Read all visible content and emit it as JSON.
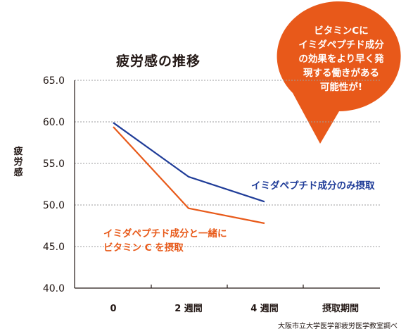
{
  "chart_data": {
    "type": "line",
    "title": "疲労感の推移",
    "xlabel": "",
    "ylabel": "疲労感",
    "categories": [
      "0",
      "2週間",
      "4週間"
    ],
    "x_tick_labels": [
      "0",
      "2 週間",
      "4 週間",
      "摂取期間"
    ],
    "y_tick_labels": [
      "40.0",
      "45.0",
      "50.0",
      "55.0",
      "60.0",
      "65.0"
    ],
    "ylim": [
      40,
      65
    ],
    "grid": true,
    "series": [
      {
        "name": "イミダペプチド成分のみ摂取",
        "values": [
          59.9,
          53.4,
          50.4
        ],
        "color": "#1f3c98"
      },
      {
        "name": "イミダペプチド成分と一緒にビタミン C を摂取",
        "values": [
          59.4,
          49.6,
          47.8
        ],
        "color": "#e85a1a"
      }
    ]
  },
  "labels": {
    "blue_series_label": "イミダペプチド成分のみ摂取",
    "orange_series_label_line1": "イミダペプチド成分と一緒に",
    "orange_series_label_line2": "ビタミン C を摂取"
  },
  "callout": {
    "lines": [
      "ビタミンCに",
      "イミダペプチド成分",
      "の効果をより早く発",
      "現する働きがある",
      "可能性が!"
    ],
    "color": "#e8591a"
  },
  "source": "大阪市立大学医学部疲労医学教室調べ",
  "colors": {
    "axis": "#231815",
    "grid": "#9e9e9f"
  }
}
